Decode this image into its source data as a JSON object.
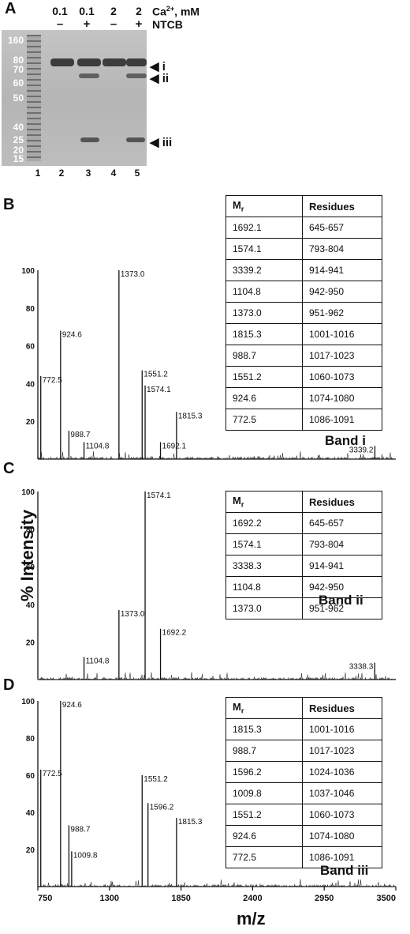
{
  "panels": {
    "A": "A",
    "B": "B",
    "C": "C",
    "D": "D"
  },
  "gel": {
    "header_ca": "Ca2+, mM",
    "header_ntcb": "NTCB",
    "lane_ca": [
      "0.1",
      "0.1",
      "2",
      "2"
    ],
    "lane_ntcb": [
      "–",
      "+",
      "–",
      "+"
    ],
    "markers": [
      "160",
      "80",
      "70",
      "60",
      "50",
      "40",
      "25",
      "20",
      "15"
    ],
    "lane_numbers": [
      "1",
      "2",
      "3",
      "4",
      "5"
    ],
    "band_labels": [
      "i",
      "ii",
      "iii"
    ]
  },
  "y_axis_label": "% Intensity",
  "x_axis_label": "m/z",
  "chart_data": [
    {
      "type": "bar",
      "panel": "B",
      "band": "Band i",
      "xlim": [
        750,
        3500
      ],
      "ylim": [
        0,
        100
      ],
      "yticks": [
        20,
        40,
        60,
        80,
        100
      ],
      "peaks": [
        {
          "x": 772.5,
          "y": 44,
          "label": "772.5"
        },
        {
          "x": 924.6,
          "y": 68,
          "label": "924.6"
        },
        {
          "x": 988.7,
          "y": 15,
          "label": "988.7"
        },
        {
          "x": 1104.8,
          "y": 9,
          "label": "1104.8"
        },
        {
          "x": 1373.0,
          "y": 100,
          "label": "1373.0"
        },
        {
          "x": 1551.2,
          "y": 47,
          "label": "1551.2"
        },
        {
          "x": 1574.1,
          "y": 39,
          "label": "1574.1"
        },
        {
          "x": 1692.1,
          "y": 9,
          "label": "1692.1"
        },
        {
          "x": 1815.3,
          "y": 25,
          "label": "1815.3"
        },
        {
          "x": 3339.2,
          "y": 7,
          "label": "3339.2"
        }
      ],
      "table": {
        "headers": [
          "Mr",
          "Residues"
        ],
        "rows": [
          [
            "1692.1",
            "645-657"
          ],
          [
            "1574.1",
            "793-804"
          ],
          [
            "3339.2",
            "914-941"
          ],
          [
            "1104.8",
            "942-950"
          ],
          [
            "1373.0",
            "951-962"
          ],
          [
            "1815.3",
            "1001-1016"
          ],
          [
            "988.7",
            "1017-1023"
          ],
          [
            "1551.2",
            "1060-1073"
          ],
          [
            "924.6",
            "1074-1080"
          ],
          [
            "772.5",
            "1086-1091"
          ]
        ]
      }
    },
    {
      "type": "bar",
      "panel": "C",
      "band": "Band ii",
      "xlim": [
        750,
        3500
      ],
      "ylim": [
        0,
        100
      ],
      "yticks": [
        20,
        40,
        60,
        80,
        100
      ],
      "peaks": [
        {
          "x": 1104.8,
          "y": 12,
          "label": "1104.8"
        },
        {
          "x": 1373.0,
          "y": 37,
          "label": "1373.0"
        },
        {
          "x": 1574.1,
          "y": 100,
          "label": "1574.1"
        },
        {
          "x": 1692.2,
          "y": 27,
          "label": "1692.2"
        },
        {
          "x": 3338.3,
          "y": 9,
          "label": "3338.3"
        }
      ],
      "table": {
        "headers": [
          "Mr",
          "Residues"
        ],
        "rows": [
          [
            "1692.2",
            "645-657"
          ],
          [
            "1574.1",
            "793-804"
          ],
          [
            "3338.3",
            "914-941"
          ],
          [
            "1104.8",
            "942-950"
          ],
          [
            "1373.0",
            "951-962"
          ]
        ]
      }
    },
    {
      "type": "bar",
      "panel": "D",
      "band": "Band iii",
      "xlim": [
        750,
        3500
      ],
      "ylim": [
        0,
        100
      ],
      "xticks": [
        750,
        1300,
        1850,
        2400,
        2950,
        3500
      ],
      "yticks": [
        20,
        40,
        60,
        80,
        100
      ],
      "peaks": [
        {
          "x": 772.5,
          "y": 63,
          "label": "772.5"
        },
        {
          "x": 924.6,
          "y": 100,
          "label": "924.6"
        },
        {
          "x": 988.7,
          "y": 33,
          "label": "988.7"
        },
        {
          "x": 1009.8,
          "y": 19,
          "label": "1009.8"
        },
        {
          "x": 1551.2,
          "y": 60,
          "label": "1551.2"
        },
        {
          "x": 1596.2,
          "y": 45,
          "label": "1596.2"
        },
        {
          "x": 1815.3,
          "y": 37,
          "label": "1815.3"
        }
      ],
      "table": {
        "headers": [
          "Mr",
          "Residues"
        ],
        "rows": [
          [
            "1815.3",
            "1001-1016"
          ],
          [
            "988.7",
            "1017-1023"
          ],
          [
            "1596.2",
            "1024-1036"
          ],
          [
            "1009.8",
            "1037-1046"
          ],
          [
            "1551.2",
            "1060-1073"
          ],
          [
            "924.6",
            "1074-1080"
          ],
          [
            "772.5",
            "1086-1091"
          ]
        ]
      }
    }
  ]
}
